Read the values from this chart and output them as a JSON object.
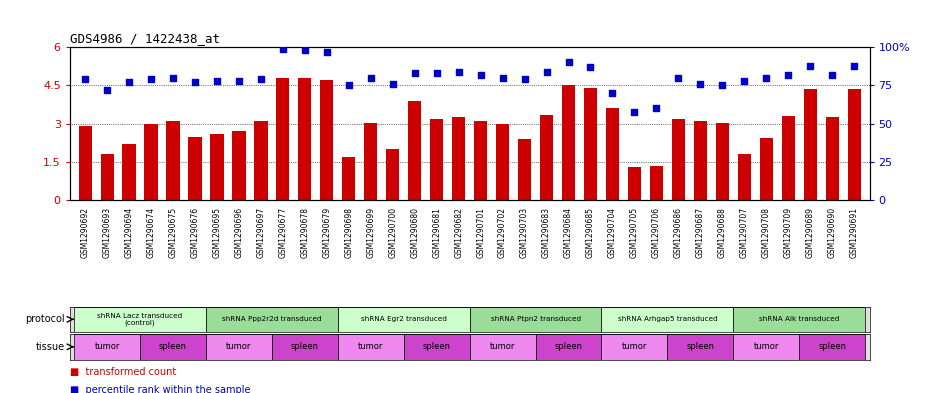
{
  "title": "GDS4986 / 1422438_at",
  "samples": [
    "GSM1290692",
    "GSM1290693",
    "GSM1290694",
    "GSM1290674",
    "GSM1290675",
    "GSM1290676",
    "GSM1290695",
    "GSM1290696",
    "GSM1290697",
    "GSM1290677",
    "GSM1290678",
    "GSM1290679",
    "GSM1290698",
    "GSM1290699",
    "GSM1290700",
    "GSM1290680",
    "GSM1290681",
    "GSM1290682",
    "GSM1290701",
    "GSM1290702",
    "GSM1290703",
    "GSM1290683",
    "GSM1290684",
    "GSM1290685",
    "GSM1290704",
    "GSM1290705",
    "GSM1290706",
    "GSM1290686",
    "GSM1290687",
    "GSM1290688",
    "GSM1290707",
    "GSM1290708",
    "GSM1290709",
    "GSM1290689",
    "GSM1290690",
    "GSM1290691"
  ],
  "bar_values": [
    2.9,
    1.8,
    2.2,
    3.0,
    3.1,
    2.5,
    2.6,
    2.7,
    3.1,
    4.8,
    4.8,
    4.7,
    1.7,
    3.05,
    2.0,
    3.9,
    3.2,
    3.25,
    3.1,
    3.0,
    2.4,
    3.35,
    4.5,
    4.4,
    3.6,
    1.3,
    1.35,
    3.2,
    3.1,
    3.05,
    1.8,
    2.45,
    3.3,
    4.35,
    3.25,
    4.35
  ],
  "dot_values": [
    79,
    72,
    77,
    79,
    80,
    77,
    78,
    78,
    79,
    99,
    98,
    97,
    75,
    80,
    76,
    83,
    83,
    84,
    82,
    80,
    79,
    84,
    90,
    87,
    70,
    58,
    60,
    80,
    76,
    75,
    78,
    80,
    82,
    88,
    82,
    88
  ],
  "protocols": [
    {
      "label": "shRNA Lacz transduced\n(control)",
      "start": 0,
      "end": 5,
      "color": "#ccffcc"
    },
    {
      "label": "shRNA Ppp2r2d transduced",
      "start": 6,
      "end": 11,
      "color": "#99dd99"
    },
    {
      "label": "shRNA Egr2 transduced",
      "start": 12,
      "end": 17,
      "color": "#ccffcc"
    },
    {
      "label": "shRNA Ptpn2 transduced",
      "start": 18,
      "end": 23,
      "color": "#99dd99"
    },
    {
      "label": "shRNA Arhgap5 transduced",
      "start": 24,
      "end": 29,
      "color": "#ccffcc"
    },
    {
      "label": "shRNA Alk transduced",
      "start": 30,
      "end": 35,
      "color": "#99dd99"
    }
  ],
  "tissues": [
    {
      "label": "tumor",
      "start": 0,
      "end": 2,
      "color": "#ee88ee"
    },
    {
      "label": "spleen",
      "start": 3,
      "end": 5,
      "color": "#cc44cc"
    },
    {
      "label": "tumor",
      "start": 6,
      "end": 8,
      "color": "#ee88ee"
    },
    {
      "label": "spleen",
      "start": 9,
      "end": 11,
      "color": "#cc44cc"
    },
    {
      "label": "tumor",
      "start": 12,
      "end": 14,
      "color": "#ee88ee"
    },
    {
      "label": "spleen",
      "start": 15,
      "end": 17,
      "color": "#cc44cc"
    },
    {
      "label": "tumor",
      "start": 18,
      "end": 20,
      "color": "#ee88ee"
    },
    {
      "label": "spleen",
      "start": 21,
      "end": 23,
      "color": "#cc44cc"
    },
    {
      "label": "tumor",
      "start": 24,
      "end": 26,
      "color": "#ee88ee"
    },
    {
      "label": "spleen",
      "start": 27,
      "end": 29,
      "color": "#cc44cc"
    },
    {
      "label": "tumor",
      "start": 30,
      "end": 32,
      "color": "#ee88ee"
    },
    {
      "label": "spleen",
      "start": 33,
      "end": 35,
      "color": "#cc44cc"
    }
  ],
  "bar_color": "#cc0000",
  "dot_color": "#0000cc",
  "ylim_left": [
    0,
    6
  ],
  "ylim_right": [
    0,
    100
  ],
  "yticks_left": [
    0,
    1.5,
    3.0,
    4.5,
    6
  ],
  "ytick_labels_left": [
    "0",
    "1.5",
    "3",
    "4.5",
    "6"
  ],
  "yticks_right": [
    0,
    25,
    50,
    75,
    100
  ],
  "ytick_labels_right": [
    "0",
    "25",
    "50",
    "75",
    "100%"
  ],
  "bg_color": "#ffffff"
}
